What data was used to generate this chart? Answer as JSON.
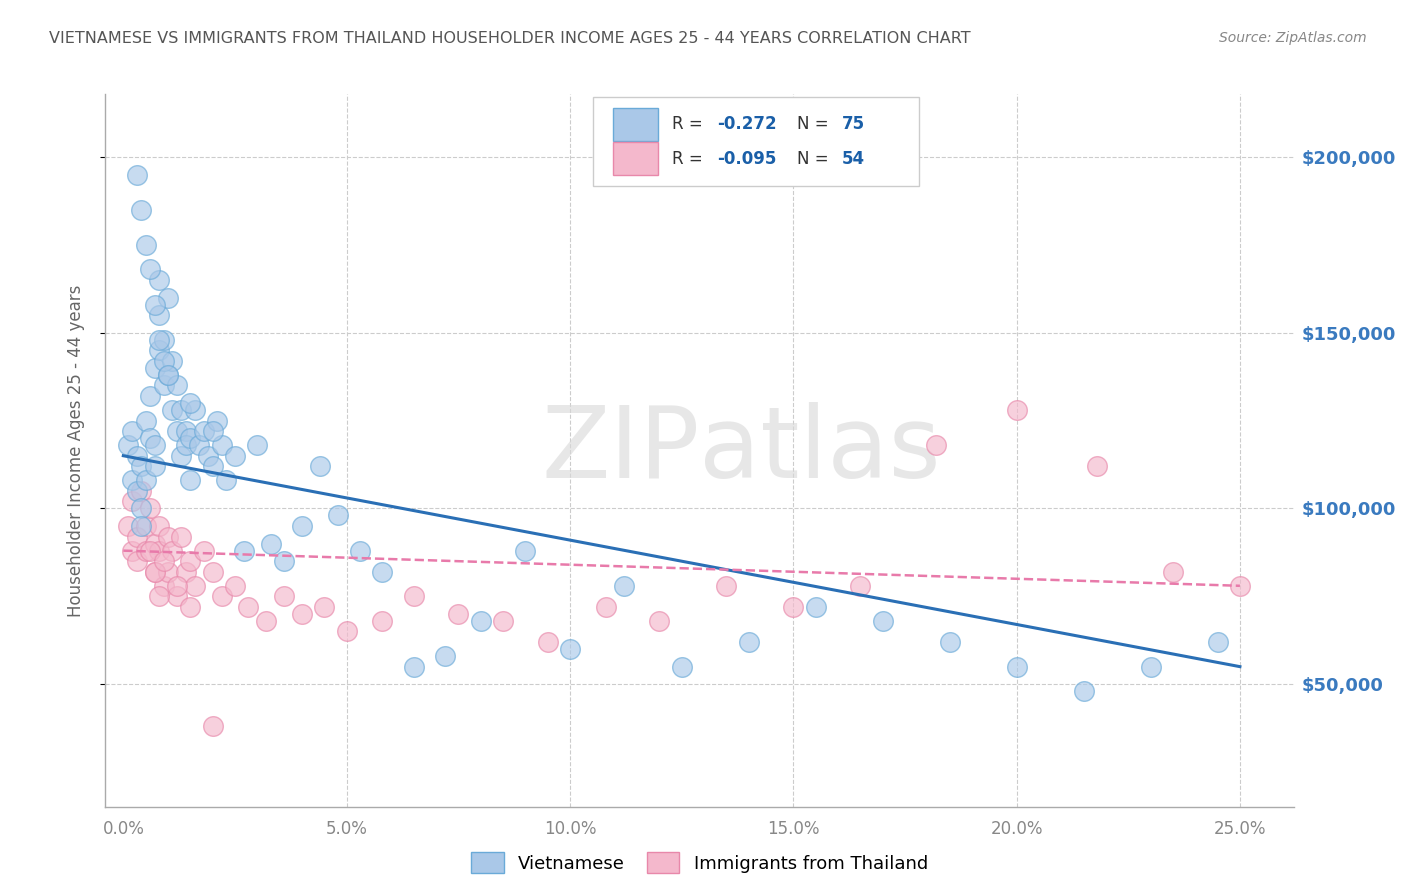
{
  "title": "VIETNAMESE VS IMMIGRANTS FROM THAILAND HOUSEHOLDER INCOME AGES 25 - 44 YEARS CORRELATION CHART",
  "source": "Source: ZipAtlas.com",
  "ylabel": "Householder Income Ages 25 - 44 years",
  "ytick_labels": [
    "$50,000",
    "$100,000",
    "$150,000",
    "$200,000"
  ],
  "ytick_vals": [
    50000,
    100000,
    150000,
    200000
  ],
  "xlabel_ticks": [
    "0.0%",
    "5.0%",
    "10.0%",
    "15.0%",
    "20.0%",
    "25.0%"
  ],
  "xlabel_vals": [
    0.0,
    0.05,
    0.1,
    0.15,
    0.2,
    0.25
  ],
  "ylim": [
    15000,
    218000
  ],
  "xlim": [
    -0.004,
    0.262
  ],
  "legend1_label": "Vietnamese",
  "legend2_label": "Immigrants from Thailand",
  "R1": "-0.272",
  "N1": "75",
  "R2": "-0.095",
  "N2": "54",
  "color_blue": "#aac8e8",
  "color_pink": "#f4b8cc",
  "edge_blue": "#6aaad8",
  "edge_pink": "#e888aa",
  "line_blue": "#2a6fb5",
  "line_pink": "#e87aaa",
  "background": "#ffffff",
  "grid_color": "#cccccc",
  "watermark_color": "#d8d8d8",
  "title_color": "#555555",
  "source_color": "#888888",
  "viet_x": [
    0.001,
    0.002,
    0.002,
    0.003,
    0.003,
    0.004,
    0.004,
    0.004,
    0.005,
    0.005,
    0.006,
    0.006,
    0.007,
    0.007,
    0.007,
    0.008,
    0.008,
    0.008,
    0.009,
    0.009,
    0.01,
    0.01,
    0.011,
    0.011,
    0.012,
    0.012,
    0.013,
    0.013,
    0.014,
    0.014,
    0.015,
    0.015,
    0.016,
    0.017,
    0.018,
    0.019,
    0.02,
    0.021,
    0.022,
    0.023,
    0.025,
    0.027,
    0.03,
    0.033,
    0.036,
    0.04,
    0.044,
    0.048,
    0.053,
    0.058,
    0.065,
    0.072,
    0.08,
    0.09,
    0.1,
    0.112,
    0.125,
    0.14,
    0.155,
    0.17,
    0.185,
    0.2,
    0.215,
    0.23,
    0.245,
    0.003,
    0.004,
    0.005,
    0.006,
    0.007,
    0.008,
    0.009,
    0.01,
    0.015,
    0.02
  ],
  "viet_y": [
    118000,
    108000,
    122000,
    115000,
    105000,
    100000,
    112000,
    95000,
    125000,
    108000,
    120000,
    132000,
    140000,
    112000,
    118000,
    155000,
    165000,
    145000,
    135000,
    148000,
    160000,
    138000,
    128000,
    142000,
    122000,
    135000,
    128000,
    115000,
    122000,
    118000,
    120000,
    108000,
    128000,
    118000,
    122000,
    115000,
    112000,
    125000,
    118000,
    108000,
    115000,
    88000,
    118000,
    90000,
    85000,
    95000,
    112000,
    98000,
    88000,
    82000,
    55000,
    58000,
    68000,
    88000,
    60000,
    78000,
    55000,
    62000,
    72000,
    68000,
    62000,
    55000,
    48000,
    55000,
    62000,
    195000,
    185000,
    175000,
    168000,
    158000,
    148000,
    142000,
    138000,
    130000,
    122000
  ],
  "thai_x": [
    0.001,
    0.002,
    0.002,
    0.003,
    0.003,
    0.004,
    0.005,
    0.005,
    0.006,
    0.007,
    0.007,
    0.008,
    0.008,
    0.009,
    0.01,
    0.01,
    0.011,
    0.012,
    0.013,
    0.014,
    0.015,
    0.016,
    0.018,
    0.02,
    0.022,
    0.025,
    0.028,
    0.032,
    0.036,
    0.04,
    0.045,
    0.05,
    0.058,
    0.065,
    0.075,
    0.085,
    0.095,
    0.108,
    0.12,
    0.135,
    0.15,
    0.165,
    0.182,
    0.2,
    0.218,
    0.235,
    0.25,
    0.006,
    0.007,
    0.008,
    0.009,
    0.012,
    0.015,
    0.02
  ],
  "thai_y": [
    95000,
    88000,
    102000,
    92000,
    85000,
    105000,
    95000,
    88000,
    100000,
    90000,
    82000,
    95000,
    88000,
    78000,
    92000,
    82000,
    88000,
    75000,
    92000,
    82000,
    85000,
    78000,
    88000,
    82000,
    75000,
    78000,
    72000,
    68000,
    75000,
    70000,
    72000,
    65000,
    68000,
    75000,
    70000,
    68000,
    62000,
    72000,
    68000,
    78000,
    72000,
    78000,
    118000,
    128000,
    112000,
    82000,
    78000,
    88000,
    82000,
    75000,
    85000,
    78000,
    72000,
    38000
  ]
}
